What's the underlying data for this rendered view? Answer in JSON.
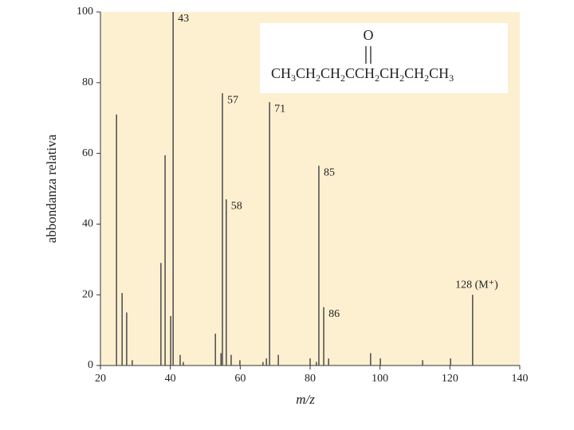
{
  "chart_data": {
    "type": "stem",
    "x_label": "m/z",
    "y_label": "abbondanza relativa",
    "color": "#555555",
    "background": "#fdf0d0",
    "xlim": [
      20,
      140
    ],
    "xticks": [
      20,
      40,
      60,
      80,
      100,
      120,
      140
    ],
    "ylim": [
      0,
      100
    ],
    "yticks": [
      0,
      20,
      40,
      60,
      80,
      100
    ],
    "x": [
      24.6,
      26.2,
      27.5,
      29.1,
      37.3,
      38.5,
      40.1,
      40.8,
      42.8,
      43.7,
      52.9,
      54.5,
      54.9,
      56.0,
      57.4,
      59.9,
      66.5,
      67.5,
      68.4,
      70.9,
      80.0,
      81.8,
      82.5,
      83.9,
      85.3,
      97.3,
      100.1,
      112.2,
      120.2,
      126.5
    ],
    "values": [
      71,
      20.5,
      15,
      1.5,
      29,
      59.5,
      14,
      100,
      3,
      1,
      9,
      3.5,
      77,
      47,
      3,
      1.5,
      1,
      2,
      74.5,
      3,
      2,
      1,
      56.5,
      16.5,
      2,
      3.5,
      2,
      1.5,
      2,
      20
    ],
    "annotations": [
      {
        "text": "43",
        "x": 40.8,
        "y": 100
      },
      {
        "text": "57",
        "x": 54.9,
        "y": 77
      },
      {
        "text": "58",
        "x": 56.0,
        "y": 47
      },
      {
        "text": "71",
        "x": 68.4,
        "y": 74.5
      },
      {
        "text": "85",
        "x": 82.5,
        "y": 56.5
      },
      {
        "text": "86",
        "x": 83.9,
        "y": 16.5
      },
      {
        "text": "128 (M⁺)",
        "x": 126.5,
        "y": 20
      }
    ],
    "structure": {
      "top": "O",
      "formula": [
        {
          "t": "CH",
          "sub": "3"
        },
        {
          "t": "CH",
          "sub": "2"
        },
        {
          "t": "CH",
          "sub": "2"
        },
        {
          "t": "CCH",
          "sub": "2"
        },
        {
          "t": "CH",
          "sub": "2"
        },
        {
          "t": "CH",
          "sub": "2"
        },
        {
          "t": "CH",
          "sub": "3"
        }
      ]
    }
  }
}
